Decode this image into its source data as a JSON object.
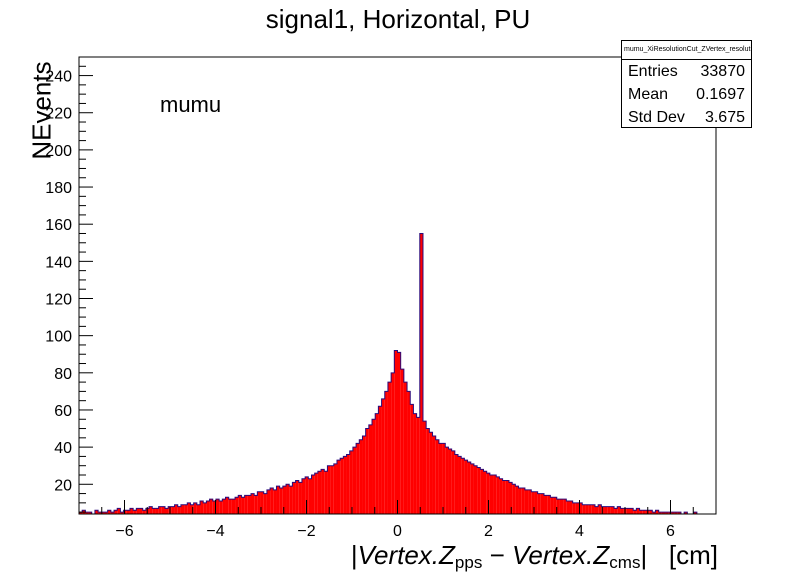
{
  "chart_data": {
    "type": "histogram",
    "title": "signal1, Horizontal, PU",
    "ylabel": "NEvents",
    "xlabel": {
      "parts": [
        "|",
        "Vertex.Z",
        "pps",
        " − ",
        "Vertex.Z",
        "cms",
        "|",
        "   [cm]"
      ]
    },
    "annotation": "mumu",
    "xlim": [
      -7,
      7
    ],
    "ylim": [
      4,
      250
    ],
    "x_ticks": [
      -6,
      -4,
      -2,
      0,
      2,
      4,
      6
    ],
    "x_tick_labels": [
      "−6",
      "−4",
      "−2",
      "0",
      "2",
      "4",
      "6"
    ],
    "y_ticks": [
      20,
      40,
      60,
      80,
      100,
      120,
      140,
      160,
      180,
      200,
      220,
      240
    ],
    "fill_color": "#ff0000",
    "line_color": "#2a0a7a",
    "bin_width": 0.07,
    "x_start": -7,
    "values": [
      5,
      6,
      5,
      5,
      4,
      6,
      5,
      5,
      5,
      6,
      5,
      6,
      7,
      5,
      6,
      6,
      7,
      6,
      7,
      7,
      6,
      7,
      8,
      7,
      7,
      8,
      8,
      7,
      8,
      8,
      9,
      8,
      9,
      9,
      10,
      9,
      10,
      9,
      11,
      10,
      11,
      12,
      11,
      12,
      11,
      12,
      13,
      12,
      12,
      13,
      14,
      13,
      14,
      14,
      15,
      14,
      16,
      16,
      15,
      17,
      18,
      17,
      19,
      18,
      19,
      20,
      19,
      21,
      22,
      21,
      23,
      24,
      23,
      25,
      26,
      27,
      28,
      27,
      30,
      30,
      31,
      33,
      34,
      35,
      36,
      38,
      40,
      42,
      44,
      46,
      50,
      52,
      55,
      58,
      62,
      66,
      70,
      75,
      80,
      92,
      91,
      82,
      75,
      70,
      63,
      58,
      56,
      155,
      54,
      50,
      48,
      46,
      44,
      42,
      42,
      40,
      39,
      38,
      36,
      35,
      34,
      33,
      32,
      31,
      30,
      29,
      28,
      27,
      26,
      25,
      25,
      24,
      23,
      22,
      22,
      21,
      20,
      19,
      18,
      18,
      17,
      17,
      16,
      16,
      15,
      15,
      14,
      14,
      13,
      13,
      12,
      12,
      12,
      11,
      11,
      10,
      10,
      10,
      9,
      9,
      9,
      9,
      8,
      9,
      8,
      8,
      8,
      8,
      7,
      8,
      7,
      7,
      7,
      7,
      6,
      7,
      6,
      6,
      6,
      6,
      5,
      6,
      5,
      5,
      5,
      5,
      5,
      5,
      5,
      4,
      5,
      4,
      4,
      5,
      4,
      4,
      4,
      4
    ]
  },
  "stats_box": {
    "name": "mumu_XiResolutionCut_ZVertex_resolution",
    "rows": [
      {
        "label": "Entries",
        "value": "33870"
      },
      {
        "label": "Mean",
        "value": "0.1697"
      },
      {
        "label": "Std Dev",
        "value": "3.675"
      }
    ]
  }
}
